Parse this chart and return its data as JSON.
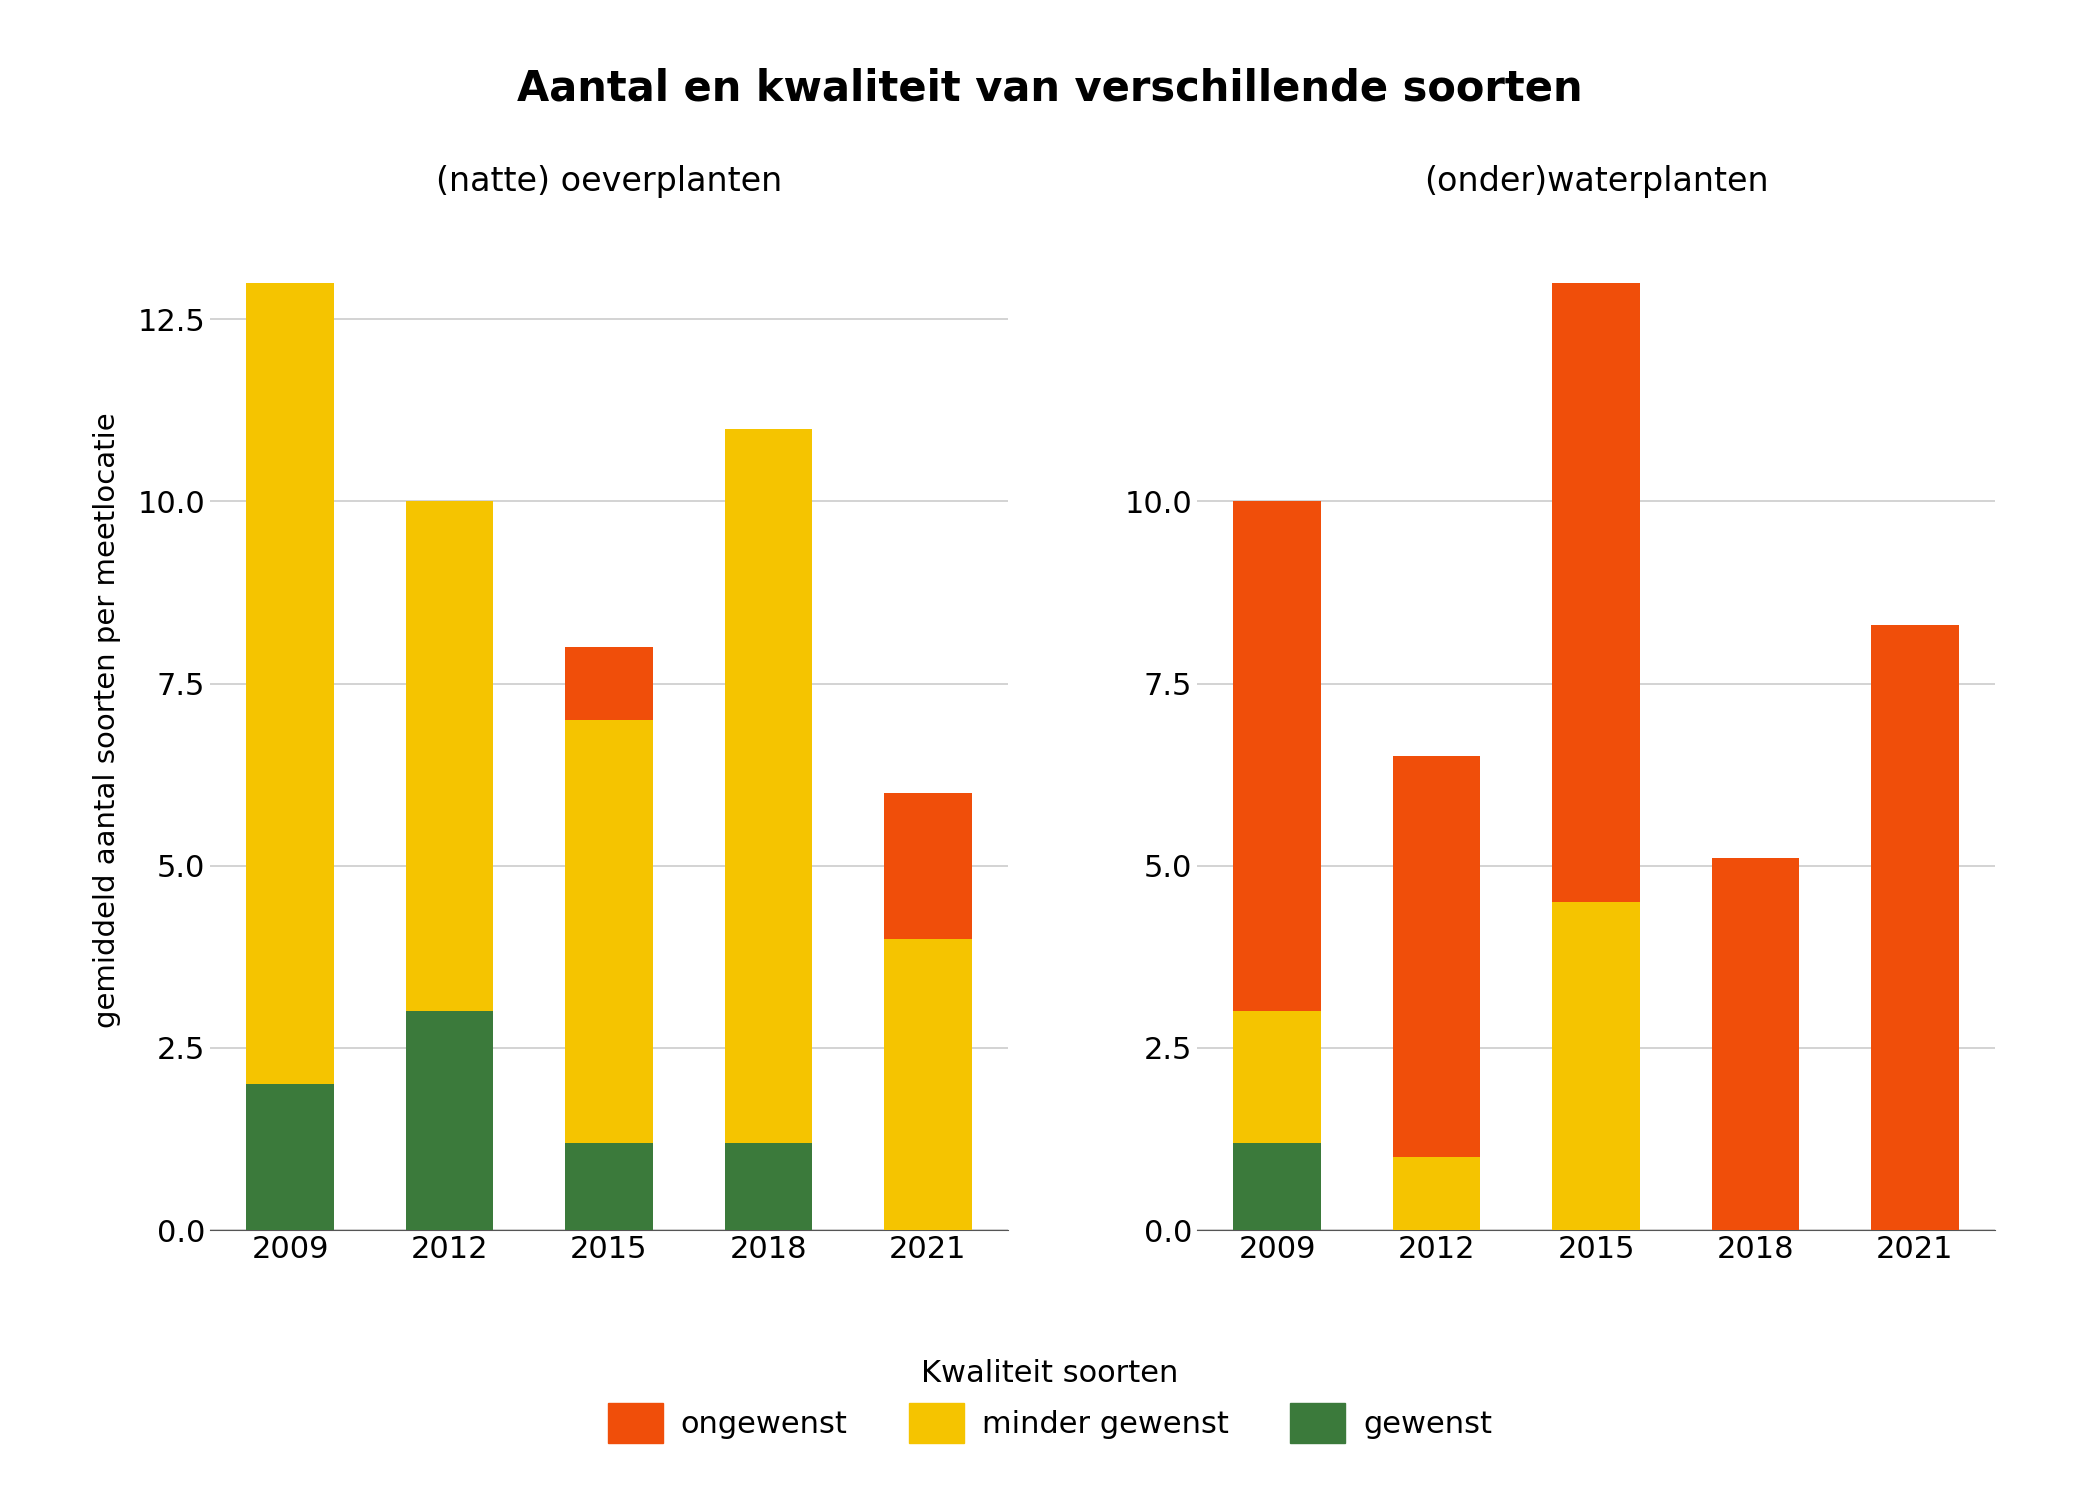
{
  "title": "Aantal en kwaliteit van verschillende soorten",
  "left_subtitle": "(natte) oeverplanten",
  "right_subtitle": "(onder)waterplanten",
  "ylabel": "gemiddeld aantal soorten per meetlocatie",
  "years": [
    2009,
    2012,
    2015,
    2018,
    2021
  ],
  "left_data": {
    "gewenst": [
      2.0,
      3.0,
      1.2,
      1.2,
      0.0
    ],
    "minder_gewenst": [
      11.0,
      7.0,
      5.8,
      9.8,
      4.0
    ],
    "ongewenst": [
      0.0,
      0.0,
      1.0,
      0.0,
      2.0
    ]
  },
  "right_data": {
    "gewenst": [
      1.2,
      0.0,
      0.0,
      0.0,
      0.0
    ],
    "minder_gewenst": [
      1.8,
      1.0,
      4.5,
      0.0,
      0.0
    ],
    "ongewenst": [
      7.0,
      5.5,
      8.5,
      5.1,
      8.3
    ]
  },
  "colors": {
    "ongewenst": "#F04E0A",
    "minder_gewenst": "#F5C400",
    "gewenst": "#3B7A3B"
  },
  "legend_title": "Kwaliteit soorten",
  "left_ylim": [
    0,
    14.0
  ],
  "right_ylim": [
    0,
    14.0
  ],
  "left_yticks": [
    0.0,
    2.5,
    5.0,
    7.5,
    10.0,
    12.5
  ],
  "right_yticks": [
    0.0,
    2.5,
    5.0,
    7.5,
    10.0
  ],
  "background_color": "#FFFFFF",
  "grid_color": "#CCCCCC",
  "bar_width": 0.55
}
